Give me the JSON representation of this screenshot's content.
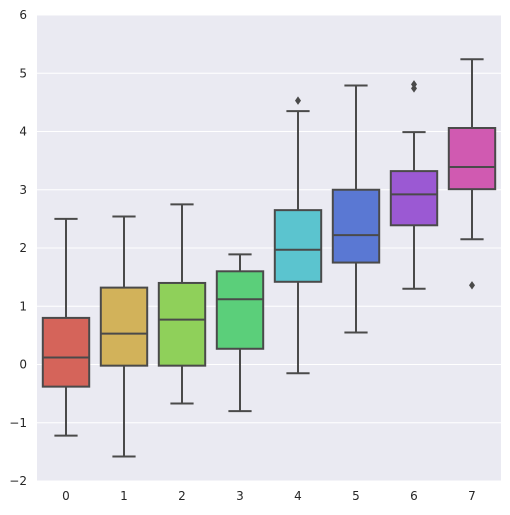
{
  "chart_data": {
    "type": "boxplot",
    "title": "",
    "xlabel": "",
    "ylabel": "",
    "ylim": [
      -2,
      6
    ],
    "grid": true,
    "legend": false,
    "categories": [
      "0",
      "1",
      "2",
      "3",
      "4",
      "5",
      "6",
      "7"
    ],
    "y_ticks": [
      "−2",
      "−1",
      "0",
      "1",
      "2",
      "3",
      "4",
      "5",
      "6"
    ],
    "y_tick_values": [
      -2,
      -1,
      0,
      1,
      2,
      3,
      4,
      5,
      6
    ],
    "boxes": [
      {
        "category": "0",
        "whisker_low": -1.22,
        "q1": -0.38,
        "median": 0.12,
        "q3": 0.8,
        "whisker_high": 2.5,
        "outliers": [],
        "color": "#d5645a"
      },
      {
        "category": "1",
        "whisker_low": -1.58,
        "q1": -0.02,
        "median": 0.53,
        "q3": 1.32,
        "whisker_high": 2.54,
        "outliers": [],
        "color": "#d2b25a"
      },
      {
        "category": "2",
        "whisker_low": -0.67,
        "q1": -0.02,
        "median": 0.77,
        "q3": 1.4,
        "whisker_high": 2.75,
        "outliers": [],
        "color": "#8fd05a"
      },
      {
        "category": "3",
        "whisker_low": -0.8,
        "q1": 0.27,
        "median": 1.12,
        "q3": 1.6,
        "whisker_high": 1.89,
        "outliers": [],
        "color": "#5bcf7a"
      },
      {
        "category": "4",
        "whisker_low": -0.15,
        "q1": 1.42,
        "median": 1.97,
        "q3": 2.65,
        "whisker_high": 4.35,
        "outliers": [
          4.53
        ],
        "color": "#5bc4cf"
      },
      {
        "category": "5",
        "whisker_low": 0.55,
        "q1": 1.75,
        "median": 2.22,
        "q3": 3.0,
        "whisker_high": 4.79,
        "outliers": [],
        "color": "#5a78d3"
      },
      {
        "category": "6",
        "whisker_low": 1.3,
        "q1": 2.39,
        "median": 2.92,
        "q3": 3.32,
        "whisker_high": 3.99,
        "outliers": [
          4.74,
          4.81
        ],
        "color": "#9b59d3"
      },
      {
        "category": "7",
        "whisker_low": 2.15,
        "q1": 3.01,
        "median": 3.39,
        "q3": 4.06,
        "whisker_high": 5.24,
        "outliers": [
          1.36
        ],
        "color": "#d05ab1"
      }
    ],
    "colors": {
      "plot_background": "#eaeaf2",
      "grid": "#ffffff",
      "line": "#4a4a4a"
    }
  }
}
